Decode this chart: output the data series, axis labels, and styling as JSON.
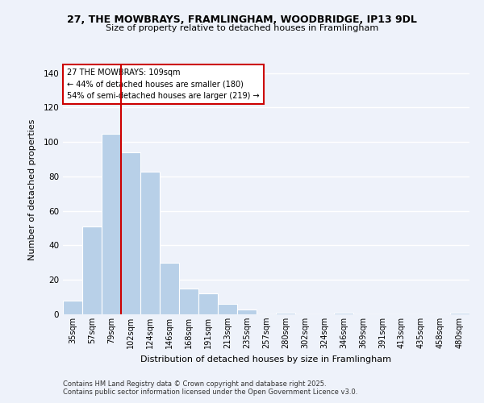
{
  "title_line1": "27, THE MOWBRAYS, FRAMLINGHAM, WOODBRIDGE, IP13 9DL",
  "title_line2": "Size of property relative to detached houses in Framlingham",
  "xlabel": "Distribution of detached houses by size in Framlingham",
  "ylabel": "Number of detached properties",
  "bar_labels": [
    "35sqm",
    "57sqm",
    "79sqm",
    "102sqm",
    "124sqm",
    "146sqm",
    "168sqm",
    "191sqm",
    "213sqm",
    "235sqm",
    "257sqm",
    "280sqm",
    "302sqm",
    "324sqm",
    "346sqm",
    "369sqm",
    "391sqm",
    "413sqm",
    "435sqm",
    "458sqm",
    "480sqm"
  ],
  "bar_values": [
    8,
    51,
    105,
    94,
    83,
    30,
    15,
    12,
    6,
    3,
    0,
    1,
    0,
    0,
    1,
    0,
    0,
    0,
    0,
    0,
    1
  ],
  "bar_color": "#b8d0e8",
  "bar_edge_color": "#b8d0e8",
  "ylim": [
    0,
    145
  ],
  "yticks": [
    0,
    20,
    40,
    60,
    80,
    100,
    120,
    140
  ],
  "property_line_color": "#cc0000",
  "annotation_text_line1": "27 THE MOWBRAYS: 109sqm",
  "annotation_text_line2": "← 44% of detached houses are smaller (180)",
  "annotation_text_line3": "54% of semi-detached houses are larger (219) →",
  "footer_line1": "Contains HM Land Registry data © Crown copyright and database right 2025.",
  "footer_line2": "Contains public sector information licensed under the Open Government Licence v3.0.",
  "background_color": "#eef2fa",
  "grid_color": "#ffffff"
}
